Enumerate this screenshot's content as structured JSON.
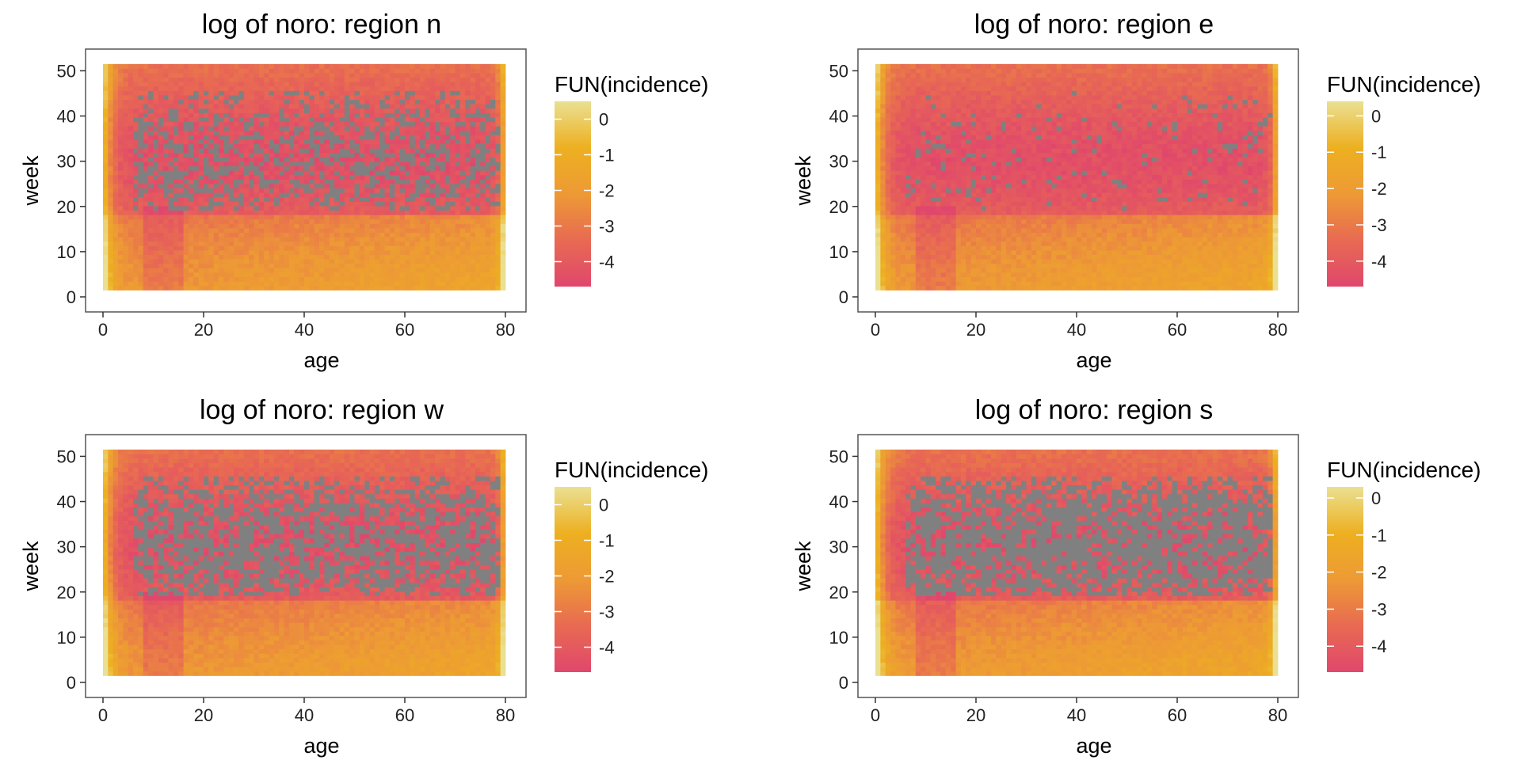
{
  "figure": {
    "background": "#ffffff"
  },
  "chart_data": [
    {
      "type": "heatmap",
      "title": "log of noro: region n",
      "xlabel": "age",
      "ylabel": "week",
      "xlim": [
        0,
        80
      ],
      "ylim": [
        0,
        52
      ],
      "xticks": [
        "0",
        "20",
        "40",
        "60",
        "80"
      ],
      "yticks": [
        "0",
        "10",
        "20",
        "30",
        "40",
        "50"
      ],
      "legend": {
        "title": "FUN(incidence)",
        "labels": [
          "0",
          "-1",
          "-2",
          "-3",
          "-4"
        ],
        "range": [
          -4.7,
          0.5
        ],
        "placement": "right"
      },
      "na_color": "#808080",
      "age_cells": 80,
      "week_cells": 52,
      "na_density": 0.45,
      "seed": 11
    },
    {
      "type": "heatmap",
      "title": "log of noro: region e",
      "xlabel": "age",
      "ylabel": "week",
      "xlim": [
        0,
        80
      ],
      "ylim": [
        0,
        52
      ],
      "xticks": [
        "0",
        "20",
        "40",
        "60",
        "80"
      ],
      "yticks": [
        "0",
        "10",
        "20",
        "30",
        "40",
        "50"
      ],
      "legend": {
        "title": "FUN(incidence)",
        "labels": [
          "0",
          "-1",
          "-2",
          "-3",
          "-4"
        ],
        "range": [
          -4.7,
          0.4
        ],
        "placement": "right"
      },
      "na_color": "#808080",
      "age_cells": 80,
      "week_cells": 52,
      "na_density": 0.08,
      "seed": 23
    },
    {
      "type": "heatmap",
      "title": "log of noro: region w",
      "xlabel": "age",
      "ylabel": "week",
      "xlim": [
        0,
        80
      ],
      "ylim": [
        0,
        52
      ],
      "xticks": [
        "0",
        "20",
        "40",
        "60",
        "80"
      ],
      "yticks": [
        "0",
        "10",
        "20",
        "30",
        "40",
        "50"
      ],
      "legend": {
        "title": "FUN(incidence)",
        "labels": [
          "0",
          "-1",
          "-2",
          "-3",
          "-4"
        ],
        "range": [
          -4.7,
          0.5
        ],
        "placement": "right"
      },
      "na_color": "#808080",
      "age_cells": 80,
      "week_cells": 52,
      "na_density": 0.6,
      "seed": 37
    },
    {
      "type": "heatmap",
      "title": "log of noro: region s",
      "xlabel": "age",
      "ylabel": "week",
      "xlim": [
        0,
        80
      ],
      "ylim": [
        0,
        52
      ],
      "xticks": [
        "0",
        "20",
        "40",
        "60",
        "80"
      ],
      "yticks": [
        "0",
        "10",
        "20",
        "30",
        "40",
        "50"
      ],
      "legend": {
        "title": "FUN(incidence)",
        "labels": [
          "0",
          "-1",
          "-2",
          "-3",
          "-4"
        ],
        "range": [
          -4.7,
          0.3
        ],
        "placement": "right"
      },
      "na_color": "#808080",
      "age_cells": 80,
      "week_cells": 52,
      "na_density": 0.75,
      "seed": 53
    }
  ],
  "colorscale": [
    "#e0476c",
    "#e86a52",
    "#ed9a35",
    "#edb020",
    "#eae092"
  ]
}
